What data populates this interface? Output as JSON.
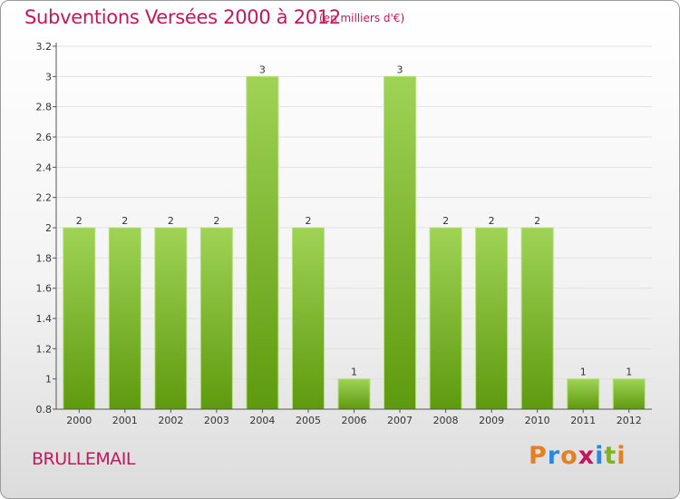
{
  "header": {
    "title": "Subventions Versées 2000 à 2012",
    "unit": "(en milliers d'€)"
  },
  "footer": {
    "place": "BRULLEMAIL",
    "logo": "Proxiti"
  },
  "colors": {
    "title": "#c2185b",
    "bar_top": "#9fd356",
    "bar_bottom": "#5e9a0e",
    "logo_letters": [
      "#e67e22",
      "#2e86de",
      "#e67e22",
      "#c2185b",
      "#2e86de",
      "#7cb518",
      "#e67e22"
    ]
  },
  "chart_data": {
    "type": "bar",
    "title": "Subventions Versées 2000 à 2012",
    "subtitle": "(en milliers d'€)",
    "xlabel": "",
    "ylabel": "",
    "categories": [
      "2000",
      "2001",
      "2002",
      "2003",
      "2004",
      "2005",
      "2006",
      "2007",
      "2008",
      "2009",
      "2010",
      "2011",
      "2012"
    ],
    "values": [
      2,
      2,
      2,
      2,
      3,
      2,
      1,
      3,
      2,
      2,
      2,
      1,
      1
    ],
    "data_labels": [
      "2",
      "2",
      "2",
      "2",
      "3",
      "2",
      "1",
      "3",
      "2",
      "2",
      "2",
      "1",
      "1"
    ],
    "ylim": [
      0.8,
      3.2
    ],
    "yticks": [
      0.8,
      1,
      1.2,
      1.4,
      1.6,
      1.8,
      2,
      2.2,
      2.4,
      2.6,
      2.8,
      3,
      3.2
    ],
    "ytick_labels": [
      "0.8",
      "1",
      "1.2",
      "1.4",
      "1.6",
      "1.8",
      "2",
      "2.2",
      "2.4",
      "2.6",
      "2.8",
      "3",
      "3.2"
    ],
    "grid": true,
    "legend": "none"
  }
}
